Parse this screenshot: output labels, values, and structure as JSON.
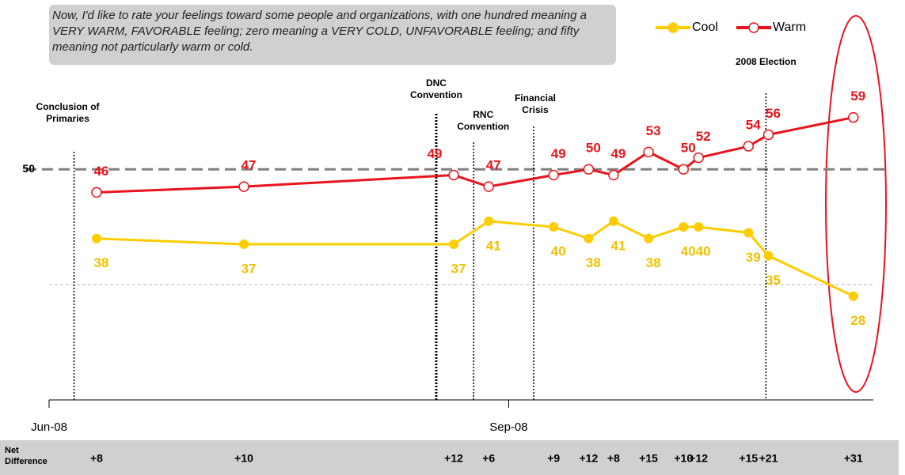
{
  "chart_data": {
    "type": "line",
    "question": "Now, I'd like to rate your feelings toward some people and organizations, with one hundred meaning a VERY WARM, FAVORABLE feeling; zero meaning a VERY COLD, UNFAVORABLE feeling; and fifty meaning not particularly warm or cold.",
    "x": [
      9.5,
      39,
      81,
      88,
      101,
      108,
      113,
      120,
      127,
      130,
      140,
      144,
      161
    ],
    "series": [
      {
        "name": "Cool",
        "color": "#ffcc00",
        "values": [
          38,
          37,
          37,
          41,
          40,
          38,
          41,
          38,
          40,
          40,
          39,
          35,
          28
        ]
      },
      {
        "name": "Warm",
        "color": "#e8141c",
        "values": [
          46,
          47,
          49,
          47,
          49,
          50,
          49,
          53,
          50,
          52,
          54,
          56,
          59
        ]
      }
    ],
    "xlim": [
      0,
      165
    ],
    "xticks": [
      {
        "value": 0,
        "label": "Jun-08"
      },
      {
        "value": 92,
        "label": "Sep-08"
      }
    ],
    "ylim": [
      10,
      78
    ],
    "yticks": [
      50
    ],
    "minor_gridlines": [
      30
    ],
    "events": [
      {
        "label": "Conclusion of Primaries",
        "x": 5
      },
      {
        "label": "DNC Convention",
        "x": 77.5
      },
      {
        "label": "RNC Convention",
        "x": 85
      },
      {
        "label": "Financial Crisis",
        "x": 97
      },
      {
        "label": "2008 Election",
        "x": 143.5
      }
    ],
    "net_difference": {
      "label": "Net Difference",
      "values": [
        "+8",
        "+10",
        "+12",
        "+6",
        "+9",
        "+12",
        "+8",
        "+15",
        "+10",
        "+12",
        "+15",
        "+21",
        "+31"
      ]
    },
    "legend": "top-right"
  }
}
